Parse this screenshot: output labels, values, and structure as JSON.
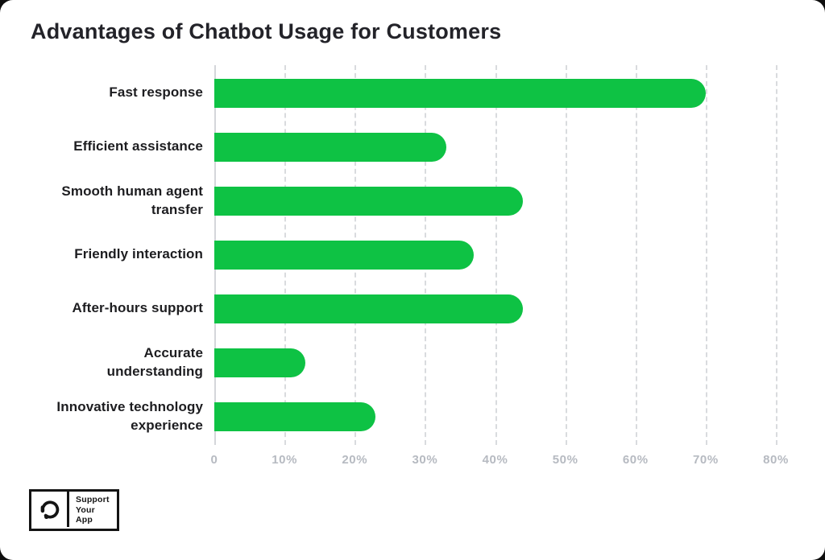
{
  "title": "Advantages of Chatbot Usage for Customers",
  "chart_data": {
    "type": "bar",
    "orientation": "horizontal",
    "title": "Advantages of Chatbot Usage for Customers",
    "categories": [
      "Fast response",
      "Efficient assistance",
      "Smooth human agent transfer",
      "Friendly interaction",
      "After-hours support",
      "Accurate understanding",
      "Innovative technology experience"
    ],
    "wrapped_labels": [
      "Fast response",
      "Efficient assistance",
      "Smooth human agent\ntransfer",
      "Friendly interaction",
      "After-hours support",
      "Accurate\nunderstanding",
      "Innovative technology\nexperience"
    ],
    "values": [
      70,
      33,
      44,
      37,
      44,
      13,
      23
    ],
    "unit": "%",
    "xlabel": "",
    "ylabel": "",
    "xlim": [
      0,
      80
    ],
    "x_ticks": [
      "0",
      "10%",
      "20%",
      "30%",
      "40%",
      "50%",
      "60%",
      "70%",
      "80%"
    ],
    "grid": "vertical-dashed",
    "legend": "none",
    "bar_color": "#0ec244"
  },
  "colors": {
    "bar_green": "#0ec244",
    "title_text": "#232329",
    "label_text": "#1d1d20",
    "tick_text": "#b6bac1",
    "gridline": "#d9dbde",
    "logo_black": "#141414",
    "card_background": "#ffffff",
    "page_background": "#0e0e0e"
  },
  "logo": {
    "icon": "headset-icon",
    "lines": [
      "Support",
      "Your",
      "App"
    ]
  }
}
